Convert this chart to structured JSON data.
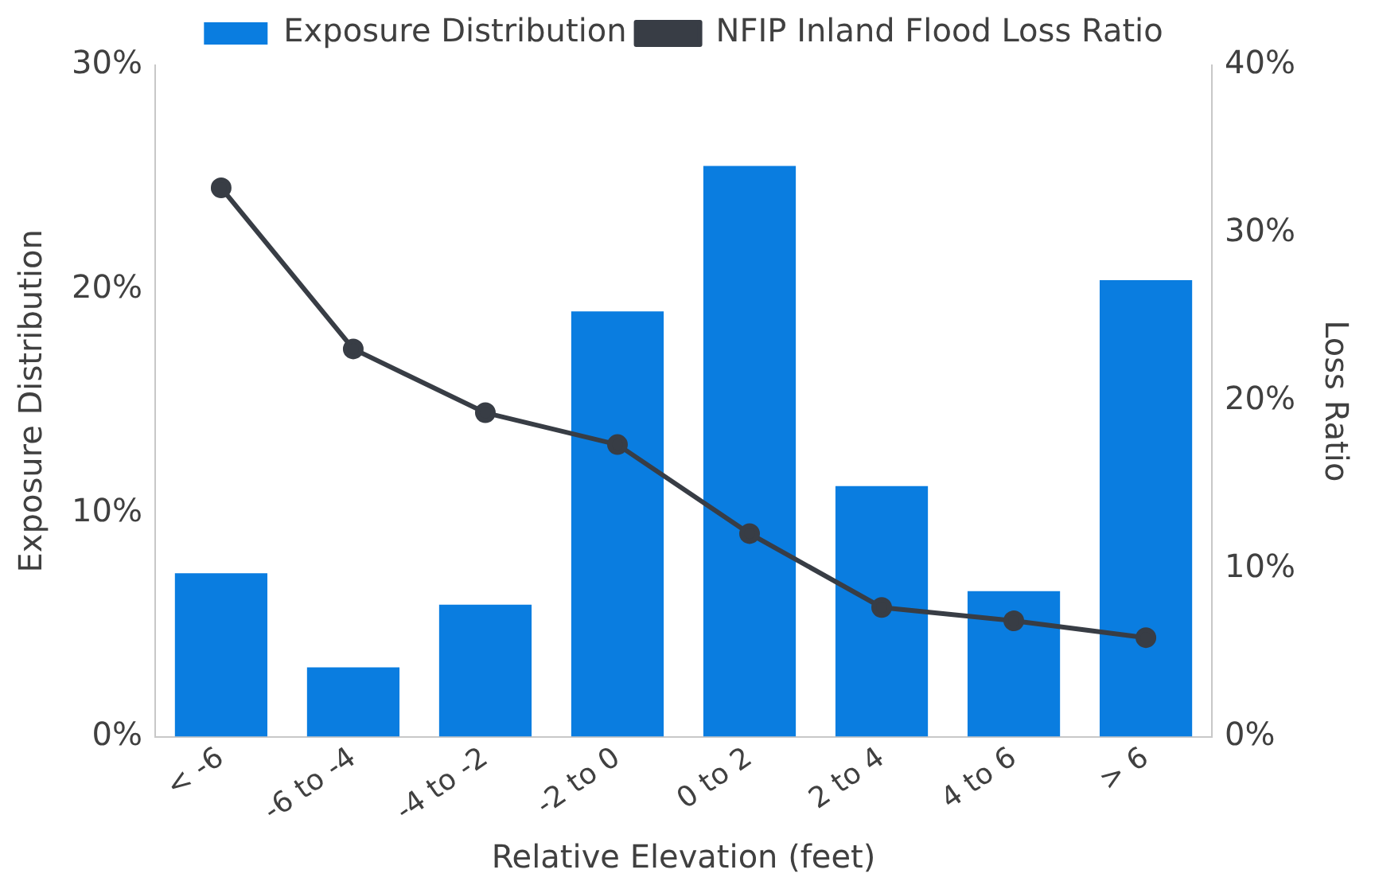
{
  "chart_data": {
    "type": "bar",
    "xlabel": "Relative Elevation (feet)",
    "ylabel": "Exposure Distribution",
    "y2label": "Loss Ratio",
    "categories": [
      "< -6",
      "-6 to -4",
      "-4 to -2",
      "-2 to 0",
      "0 to 2",
      "2 to 4",
      "4 to 6",
      "> 6"
    ],
    "series": [
      {
        "name": "Exposure Distribution",
        "color": "#0a7de0",
        "values": [
          7.3,
          3.1,
          5.9,
          19.0,
          25.5,
          11.2,
          6.5,
          20.4
        ]
      },
      {
        "name": "NFIP Inland Flood Loss Ratio",
        "type": "line",
        "axis": "y2",
        "color": "#383d45",
        "values": [
          32.7,
          23.1,
          19.3,
          17.4,
          12.1,
          7.7,
          6.9,
          5.9
        ]
      }
    ],
    "ylim": [
      0,
      30
    ],
    "yticks": [
      {
        "value": 0,
        "label": "0%"
      },
      {
        "value": 10,
        "label": "10%"
      },
      {
        "value": 20,
        "label": "20%"
      },
      {
        "value": 30,
        "label": "30%"
      }
    ],
    "y2lim": [
      0,
      40
    ],
    "y2ticks": [
      {
        "value": 0,
        "label": "0%"
      },
      {
        "value": 10,
        "label": "10%"
      },
      {
        "value": 20,
        "label": "20%"
      },
      {
        "value": 30,
        "label": "30%"
      },
      {
        "value": 40,
        "label": "40%"
      }
    ],
    "legend": "top",
    "grid": false,
    "marker": "circle",
    "line_style": "solid"
  }
}
